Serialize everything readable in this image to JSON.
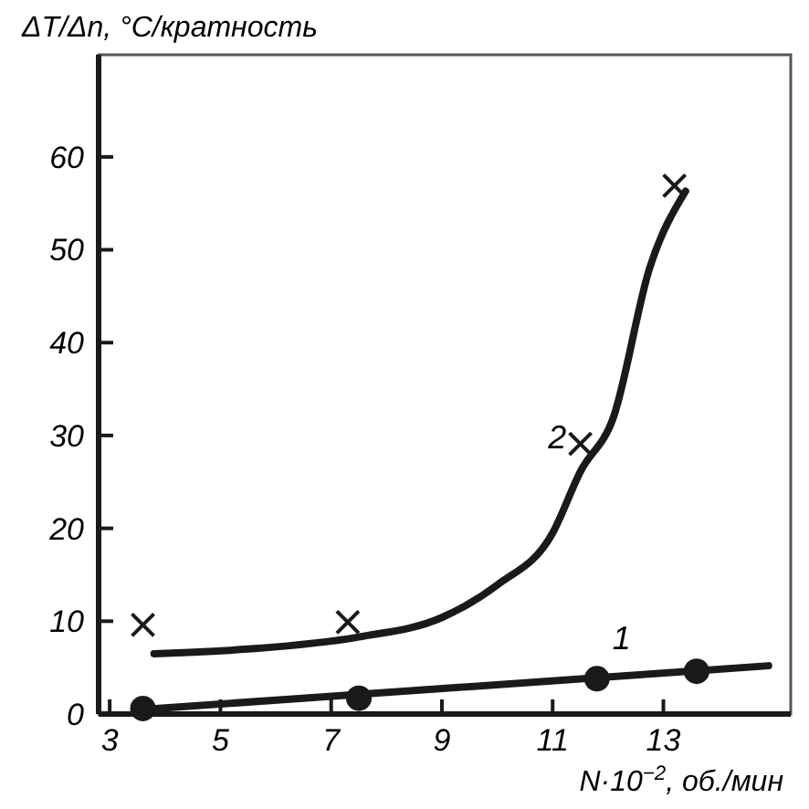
{
  "chart_data": {
    "type": "line",
    "ylabel": "ΔT/Δn, °C/кратность",
    "xlabel": "N·10$^{−2}$, об./мин",
    "xlim": [
      2.8,
      15.3
    ],
    "xticks": [
      3,
      5,
      7,
      9,
      11,
      13
    ],
    "ylim": [
      0,
      71
    ],
    "yticks": [
      0,
      10,
      20,
      30,
      40,
      50,
      60
    ],
    "series": [
      {
        "type": "scatter",
        "marker": "circle",
        "color": "#1a1a1a",
        "x": [
          3.6,
          7.5,
          11.8,
          13.6
        ],
        "values": [
          0.6,
          1.7,
          3.8,
          4.6
        ]
      },
      {
        "name": "1",
        "color": "#1a1a1a",
        "x": [
          3.6,
          14.9
        ],
        "values": [
          0.5,
          5.2
        ]
      },
      {
        "type": "scatter",
        "marker": "cross",
        "color": "#1a1a1a",
        "x": [
          3.6,
          7.3,
          11.5,
          13.2
        ],
        "values": [
          9.6,
          9.9,
          29.1,
          56.9
        ]
      },
      {
        "name": "2",
        "color": "#1a1a1a",
        "x": [
          3.8,
          5.5,
          7.5,
          9,
          10,
          11,
          11.5,
          12.1,
          12.75,
          13.4
        ],
        "values": [
          6.5,
          7,
          8.3,
          10.4,
          13.9,
          19.5,
          26.1,
          32,
          48,
          56.3
        ]
      }
    ]
  }
}
